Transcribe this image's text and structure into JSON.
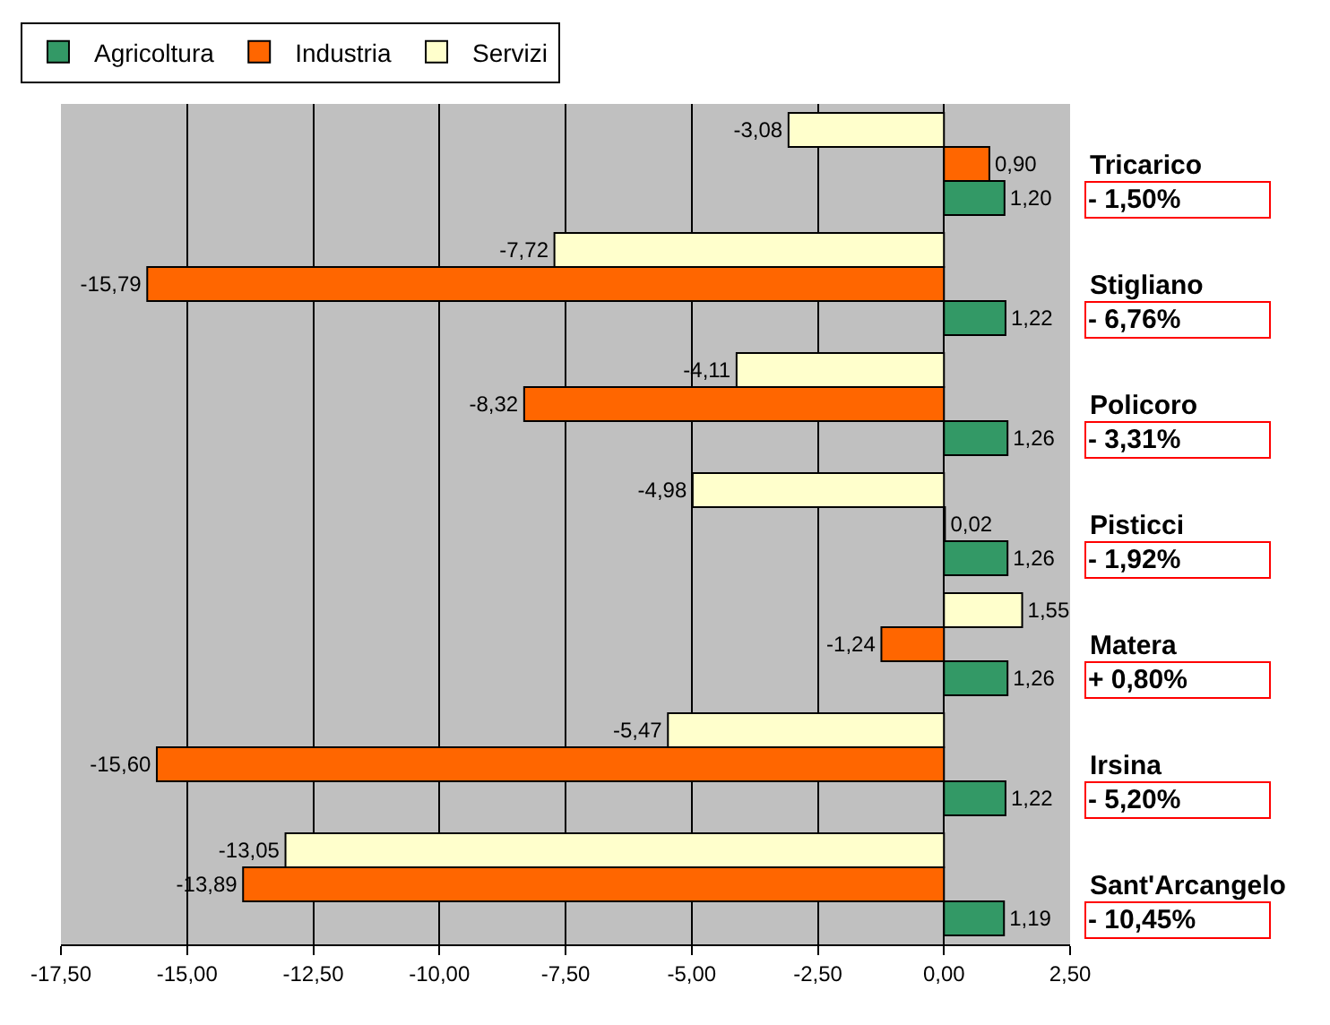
{
  "chart_data": {
    "type": "bar",
    "orientation": "horizontal",
    "categories": [
      "Tricarico",
      "Stigliano",
      "Policoro",
      "Pisticci",
      "Matera",
      "Irsina",
      "Sant'Arcangelo"
    ],
    "series": [
      {
        "name": "Agricoltura",
        "color": "#339966",
        "values": [
          1.2,
          1.22,
          1.26,
          1.26,
          1.26,
          1.22,
          1.19
        ],
        "value_labels": [
          "1,20",
          "1,22",
          "1,26",
          "1,26",
          "1,26",
          "1,22",
          "1,19"
        ]
      },
      {
        "name": "Industria",
        "color": "#ff6600",
        "values": [
          0.9,
          -15.79,
          -8.32,
          0.02,
          -1.24,
          -15.6,
          -13.89
        ],
        "value_labels": [
          "0,90",
          "-15,79",
          "-8,32",
          "0,02",
          "-1,24",
          "-15,60",
          "-13,89"
        ]
      },
      {
        "name": "Servizi",
        "color": "#ffffcc",
        "values": [
          -3.08,
          -7.72,
          -4.11,
          -4.98,
          1.55,
          -5.47,
          -13.05
        ],
        "value_labels": [
          "-3,08",
          "-7,72",
          "-4,11",
          "-4,98",
          "1,55",
          "-5,47",
          "-13,05"
        ]
      }
    ],
    "annotations": [
      "- 1,50%",
      "- 6,76%",
      "- 3,31%",
      "- 1,92%",
      "+ 0,80%",
      "- 5,20%",
      "- 10,45%"
    ],
    "xlim": [
      -17.5,
      2.5
    ],
    "xticks": [
      {
        "value": -17.5,
        "label": "-17,50"
      },
      {
        "value": -15,
        "label": "-15,00"
      },
      {
        "value": -12.5,
        "label": "-12,50"
      },
      {
        "value": -10,
        "label": "-10,00"
      },
      {
        "value": -7.5,
        "label": "-7,50"
      },
      {
        "value": -5,
        "label": "-5,00"
      },
      {
        "value": -2.5,
        "label": "-2,50"
      },
      {
        "value": 0,
        "label": "0,00"
      },
      {
        "value": 2.5,
        "label": "2,50"
      }
    ],
    "grid": "x",
    "legend": "top left"
  }
}
